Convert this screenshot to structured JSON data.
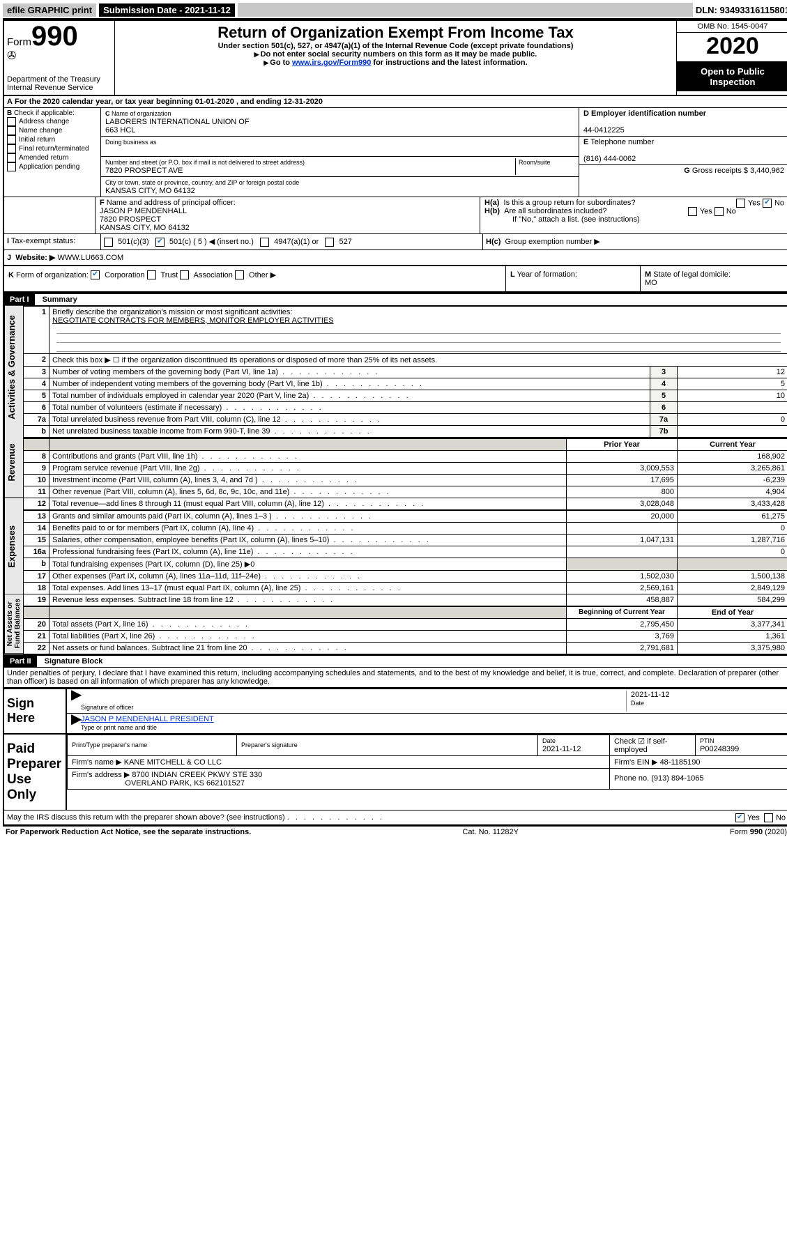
{
  "topbar": {
    "efile": "efile GRAPHIC print",
    "submission": "Submission Date - 2021-11-12",
    "dln": "DLN: 93493316115801"
  },
  "header": {
    "form_prefix": "Form",
    "form_number": "990",
    "dept": "Department of the Treasury\nInternal Revenue Service",
    "title": "Return of Organization Exempt From Income Tax",
    "subtitle": "Under section 501(c), 527, or 4947(a)(1) of the Internal Revenue Code (except private foundations)",
    "note1": "Do not enter social security numbers on this form as it may be made public.",
    "note2_a": "Go to ",
    "note2_link": "www.irs.gov/Form990",
    "note2_b": " for instructions and the latest information.",
    "omb": "OMB No. 1545-0047",
    "year": "2020",
    "inspection": "Open to Public Inspection"
  },
  "row_a": "For the 2020 calendar year, or tax year beginning 01-01-2020   , and ending 12-31-2020",
  "section_b": {
    "label": "Check if applicable:",
    "opts": [
      "Address change",
      "Name change",
      "Initial return",
      "Final return/terminated",
      "Amended return",
      "Application pending"
    ]
  },
  "section_c": {
    "c_label": "Name of organization",
    "c_val": "LABORERS INTERNATIONAL UNION OF\n663 HCL",
    "dba_label": "Doing business as",
    "addr_label": "Number and street (or P.O. box if mail is not delivered to street address)",
    "room_label": "Room/suite",
    "addr_val": "7820 PROSPECT AVE",
    "city_label": "City or town, state or province, country, and ZIP or foreign postal code",
    "city_val": "KANSAS CITY, MO  64132"
  },
  "section_d": {
    "label": "Employer identification number",
    "val": "44-0412225"
  },
  "section_e": {
    "label": "Telephone number",
    "val": "(816) 444-0062"
  },
  "section_g": {
    "label": "Gross receipts $",
    "val": "3,440,962"
  },
  "section_f": {
    "label": "Name and address of principal officer:",
    "val": "JASON P MENDENHALL\n7820 PROSPECT\nKANSAS CITY, MO  64132"
  },
  "section_h": {
    "a": "Is this a group return for subordinates?",
    "b": "Are all subordinates included?",
    "b_note": "If \"No,\" attach a list. (see instructions)",
    "c": "Group exemption number ▶"
  },
  "section_i": {
    "label": "Tax-exempt status:",
    "t501c3": "501(c)(3)",
    "t501c": "501(c) ( 5 ) ◀ (insert no.)",
    "t4947": "4947(a)(1) or",
    "t527": "527"
  },
  "section_j": {
    "label": "Website: ▶",
    "val": "WWW.LU663.COM"
  },
  "section_k": {
    "label": "Form of organization:",
    "corp": "Corporation",
    "trust": "Trust",
    "assoc": "Association",
    "other": "Other ▶"
  },
  "section_l": {
    "label": "Year of formation:"
  },
  "section_m": {
    "label": "State of legal domicile:",
    "val": "MO"
  },
  "part1": {
    "hdr": "Part I",
    "title": "Summary",
    "q1": "Briefly describe the organization's mission or most significant activities:",
    "q1val": "NEGOTIATE CONTRACTS FOR MEMBERS, MONITOR EMPLOYER ACTIVITIES",
    "q2": "Check this box ▶ ☐  if the organization discontinued its operations or disposed of more than 25% of its net assets.",
    "rows_gov": [
      {
        "n": "3",
        "t": "Number of voting members of the governing body (Part VI, line 1a)",
        "b": "3",
        "v": "12"
      },
      {
        "n": "4",
        "t": "Number of independent voting members of the governing body (Part VI, line 1b)",
        "b": "4",
        "v": "5"
      },
      {
        "n": "5",
        "t": "Total number of individuals employed in calendar year 2020 (Part V, line 2a)",
        "b": "5",
        "v": "10"
      },
      {
        "n": "6",
        "t": "Total number of volunteers (estimate if necessary)",
        "b": "6",
        "v": ""
      },
      {
        "n": "7a",
        "t": "Total unrelated business revenue from Part VIII, column (C), line 12",
        "b": "7a",
        "v": "0"
      },
      {
        "n": "b",
        "t": "Net unrelated business taxable income from Form 990-T, line 39",
        "b": "7b",
        "v": ""
      }
    ],
    "col_hdr_prior": "Prior Year",
    "col_hdr_current": "Current Year",
    "rows_rev": [
      {
        "n": "8",
        "t": "Contributions and grants (Part VIII, line 1h)",
        "p": "",
        "c": "168,902"
      },
      {
        "n": "9",
        "t": "Program service revenue (Part VIII, line 2g)",
        "p": "3,009,553",
        "c": "3,265,861"
      },
      {
        "n": "10",
        "t": "Investment income (Part VIII, column (A), lines 3, 4, and 7d )",
        "p": "17,695",
        "c": "-6,239"
      },
      {
        "n": "11",
        "t": "Other revenue (Part VIII, column (A), lines 5, 6d, 8c, 9c, 10c, and 11e)",
        "p": "800",
        "c": "4,904"
      },
      {
        "n": "12",
        "t": "Total revenue—add lines 8 through 11 (must equal Part VIII, column (A), line 12)",
        "p": "3,028,048",
        "c": "3,433,428"
      }
    ],
    "rows_exp": [
      {
        "n": "13",
        "t": "Grants and similar amounts paid (Part IX, column (A), lines 1–3 )",
        "p": "20,000",
        "c": "61,275"
      },
      {
        "n": "14",
        "t": "Benefits paid to or for members (Part IX, column (A), line 4)",
        "p": "",
        "c": "0"
      },
      {
        "n": "15",
        "t": "Salaries, other compensation, employee benefits (Part IX, column (A), lines 5–10)",
        "p": "1,047,131",
        "c": "1,287,716"
      },
      {
        "n": "16a",
        "t": "Professional fundraising fees (Part IX, column (A), line 11e)",
        "p": "",
        "c": "0"
      },
      {
        "n": "b",
        "t": "Total fundraising expenses (Part IX, column (D), line 25) ▶0",
        "shade": true
      },
      {
        "n": "17",
        "t": "Other expenses (Part IX, column (A), lines 11a–11d, 11f–24e)",
        "p": "1,502,030",
        "c": "1,500,138"
      },
      {
        "n": "18",
        "t": "Total expenses. Add lines 13–17 (must equal Part IX, column (A), line 25)",
        "p": "2,569,161",
        "c": "2,849,129"
      },
      {
        "n": "19",
        "t": "Revenue less expenses. Subtract line 18 from line 12",
        "p": "458,887",
        "c": "584,299"
      }
    ],
    "col_hdr_begin": "Beginning of Current Year",
    "col_hdr_end": "End of Year",
    "rows_net": [
      {
        "n": "20",
        "t": "Total assets (Part X, line 16)",
        "p": "2,795,450",
        "c": "3,377,341"
      },
      {
        "n": "21",
        "t": "Total liabilities (Part X, line 26)",
        "p": "3,769",
        "c": "1,361"
      },
      {
        "n": "22",
        "t": "Net assets or fund balances. Subtract line 21 from line 20",
        "p": "2,791,681",
        "c": "3,375,980"
      }
    ],
    "gov_label": "Activities & Governance",
    "rev_label": "Revenue",
    "exp_label": "Expenses",
    "net_label": "Net Assets or Fund Balances"
  },
  "part2": {
    "hdr": "Part II",
    "title": "Signature Block",
    "decl": "Under penalties of perjury, I declare that I have examined this return, including accompanying schedules and statements, and to the best of my knowledge and belief, it is true, correct, and complete. Declaration of preparer (other than officer) is based on all information of which preparer has any knowledge."
  },
  "sign": {
    "left": "Sign Here",
    "sig_label": "Signature of officer",
    "date_label": "Date",
    "date_val": "2021-11-12",
    "name_val": "JASON P MENDENHALL  PRESIDENT",
    "name_label": "Type or print name and title"
  },
  "prep": {
    "left": "Paid Preparer Use Only",
    "r1c1": "Print/Type preparer's name",
    "r1c2": "Preparer's signature",
    "r1c3_l": "Date",
    "r1c3_v": "2021-11-12",
    "r1c4": "Check ☑ if self-employed",
    "r1c5_l": "PTIN",
    "r1c5_v": "P00248399",
    "r2c1_l": "Firm's name    ▶",
    "r2c1_v": "KANE MITCHELL & CO LLC",
    "r2c2_l": "Firm's EIN ▶",
    "r2c2_v": "48-1185190",
    "r3c1_l": "Firm's address ▶",
    "r3c1_v": "8700 INDIAN CREEK PKWY STE 330",
    "r3c1_v2": "OVERLAND PARK, KS  662101527",
    "r3c2_l": "Phone no.",
    "r3c2_v": "(913) 894-1065",
    "discuss": "May the IRS discuss this return with the preparer shown above? (see instructions)",
    "yes": "Yes",
    "no": "No"
  },
  "footer": {
    "left": "For Paperwork Reduction Act Notice, see the separate instructions.",
    "mid": "Cat. No. 11282Y",
    "right": "Form 990 (2020)"
  }
}
